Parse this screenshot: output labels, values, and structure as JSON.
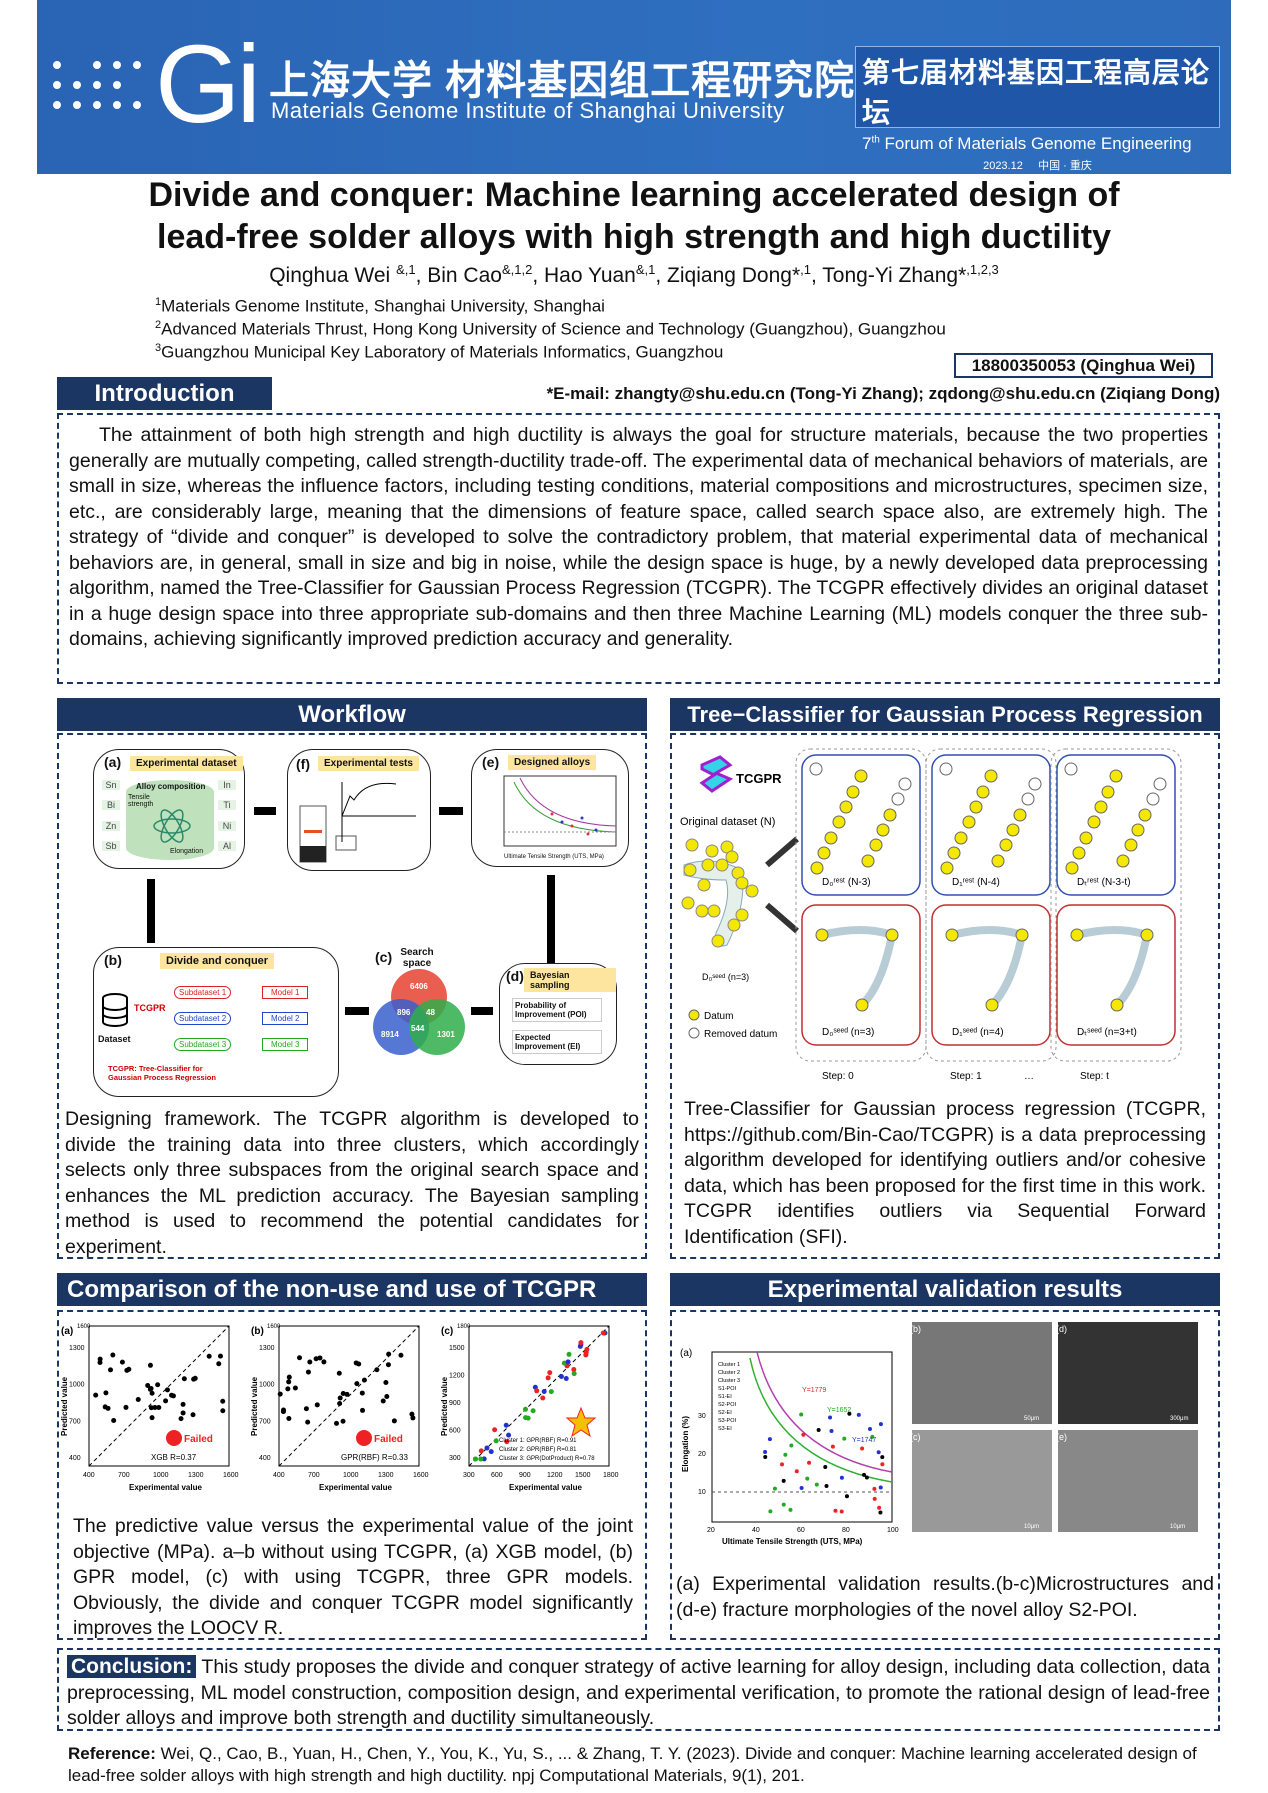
{
  "banner": {
    "logo_text": "Gi",
    "institute_cn": "上海大学 材料基因组工程研究院",
    "institute_en": "Materials Genome Institute of Shanghai University",
    "forum_cn": "第七届材料基因工程高层论坛",
    "forum_en_sup": "th",
    "forum_en_num": "7",
    "forum_en": "Forum of Materials Genome Engineering",
    "forum_date": "2023.12",
    "forum_place": "中国 · 重庆",
    "brand_color": "#2a64b4"
  },
  "title": {
    "line1": "Divide and conquer:   Machine learning accelerated design of",
    "line2": "lead-free solder alloys with high strength and high ductility"
  },
  "authors": [
    {
      "name": "Qinghua Wei ",
      "sup": "&,1"
    },
    {
      "name": ", Bin Cao",
      "sup": "&,1,2"
    },
    {
      "name": ", Hao Yuan",
      "sup": "&,1"
    },
    {
      "name": ", Ziqiang Dong*",
      "sup": ",1"
    },
    {
      "name": ", Tong-Yi Zhang*",
      "sup": ",1,2,3"
    }
  ],
  "affiliations": [
    {
      "sup": "1",
      "text": "Materials Genome Institute, Shanghai University, Shanghai"
    },
    {
      "sup": "2",
      "text": "Advanced Materials Thrust, Hong Kong University of Science and Technology (Guangzhou), Guangzhou"
    },
    {
      "sup": "3",
      "text": "Guangzhou Municipal Key Laboratory of Materials Informatics, Guangzhou"
    }
  ],
  "contact": {
    "phone": "18800350053 (Qinghua Wei)",
    "email": "*E-mail: zhangty@shu.edu.cn (Tong-Yi Zhang); zqdong@shu.edu.cn (Ziqiang Dong)"
  },
  "introduction": {
    "heading": "Introduction",
    "text": "The attainment of both high strength and high ductility is always the goal for structure materials, because the two properties generally are mutually competing, called strength-ductility trade-off. The experimental data of mechanical behaviors of materials, are small in size, whereas the influence factors, including testing conditions, material compositions and microstructures, specimen size, etc., are considerably large, meaning that the dimensions of feature space, called search space also, are extremely high. The strategy of “divide and conquer” is developed to solve the contradictory problem, that material experimental data of mechanical behaviors are, in general, small in size and big in noise, while the design space is huge, by a newly developed data preprocessing algorithm, named the Tree-Classifier for Gaussian Process Regression (TCGPR).  The TCGPR effectively divides an original dataset in a huge design space into three appropriate sub-domains and then three Machine Learning (ML) models conquer the three sub-domains, achieving significantly improved prediction accuracy and generality."
  },
  "workflow": {
    "heading": "Workflow",
    "fig": {
      "a_label": "(a)",
      "a_tag": "Experimental dataset",
      "alloy_comp": "Alloy composition",
      "tensile": "Tensile strength",
      "elongation": "Elongation",
      "elements_left": [
        "Sn",
        "Bi",
        "Zn",
        "Sb"
      ],
      "elements_right": [
        "In",
        "Ti",
        "Ni",
        "Al"
      ],
      "f_label": "(f)",
      "f_tag": "Experimental tests",
      "e_label": "(e)",
      "e_tag": "Designed alloys",
      "e_xlabel": "Ultimate Tensile Strength (UTS, MPa)",
      "e_ylabel": "Elongation (%)",
      "b_label": "(b)",
      "b_tag": "Divide and conquer",
      "dataset": "Dataset",
      "tcgpr": "TCGPR",
      "subdatasets": [
        "Subdataset 1",
        "Subdataset 2",
        "Subdataset 3"
      ],
      "models": [
        "Model 1",
        "Model 2",
        "Model 3"
      ],
      "tcgpr_note": "TCGPR: Tree-Classifier for Gaussian Process Regression",
      "c_label": "(c)",
      "c_title": "Search space",
      "venn": [
        "6406",
        "8914",
        "1301",
        "896",
        "48",
        "544"
      ],
      "d_label": "(d)",
      "d_tag": "Bayesian sampling",
      "poi": "Probability of Improvement (POI)",
      "ei": "Expected Improvement (EI)"
    },
    "caption": "Designing framework. The TCGPR algorithm is developed to divide the training data into three clusters, which accordingly selects only three subspaces from the original search space and enhances the ML prediction accuracy. The Bayesian sampling method is used to recommend the potential candidates for experiment."
  },
  "tcgpr": {
    "heading": "Tree−Classifier for Gaussian Process Regression",
    "fig": {
      "logo": "TCGPR",
      "original": "Original dataset (N)",
      "seed0": "D₀ˢᵉᵉᵈ (n=3)",
      "rest": [
        "D₀ʳᵉˢᵗ (N-3)",
        "D₁ʳᵉˢᵗ (N-4)",
        "Dₜʳᵉˢᵗ (N-3-t)"
      ],
      "seed": [
        "D₀ˢᵉᵉᵈ (n=3)",
        "D₁ˢᵉᵉᵈ (n=4)",
        "Dₜˢᵉᵉᵈ (n=3+t)"
      ],
      "steps": [
        "Step: 0",
        "Step: 1",
        "…",
        "Step: t"
      ],
      "legend_datum": "Datum",
      "legend_removed": "Removed datum",
      "datum_color": "#f5e800"
    },
    "caption": "Tree-Classifier for Gaussian process regression (TCGPR, https://github.com/Bin-Cao/TCGPR) is a data preprocessing algorithm developed for identifying outliers and/or cohesive data, which has been proposed for the first time in this work. TCGPR identifies outliers via Sequential Forward Identification (SFI)."
  },
  "comparison": {
    "heading": "Comparison of the non-use and use of TCGPR",
    "plots": [
      {
        "label": "(a)",
        "ymax": "1600",
        "yticks": [
          "1300",
          "1000",
          "700",
          "400"
        ],
        "xticks": [
          "400",
          "700",
          "1000",
          "1300",
          "1600"
        ],
        "legend": "XGB  R=0.37",
        "failed": "Failed"
      },
      {
        "label": "(b)",
        "ymax": "1600",
        "yticks": [
          "1300",
          "1000",
          "700",
          "400"
        ],
        "xticks": [
          "400",
          "700",
          "1000",
          "1300",
          "1600"
        ],
        "legend": "GPR(RBF)  R=0.33",
        "failed": "Failed"
      },
      {
        "label": "(c)",
        "ymax": "1800",
        "yticks": [
          "1500",
          "1200",
          "900",
          "600",
          "300"
        ],
        "xticks": [
          "300",
          "600",
          "900",
          "1200",
          "1500",
          "1800"
        ],
        "legends": [
          "Cluster 1: GPR(RBF) R=0.91",
          "Cluster 2: GPR(RBF) R=0.81",
          "Cluster 3: GPR(DotProduct) R=0.78"
        ]
      }
    ],
    "xlabel": "Experimental value",
    "ylabel": "Predicted value",
    "caption": "The predictive value versus the experimental value of the joint objective (MPa). a–b without using TCGPR, (a) XGB model, (b) GPR model, (c) with using TCGPR, three GPR models. Obviously, the divide and conquer TCGPR model significantly improves the LOOCV R."
  },
  "validation": {
    "heading": "Experimental validation results",
    "fig": {
      "a_label": "(a)",
      "xlabel": "Ultimate Tensile Strength (UTS, MPa)",
      "ylabel": "Elongation (%)",
      "xticks": [
        "20",
        "40",
        "60",
        "80",
        "100"
      ],
      "yticks": [
        "10",
        "20",
        "30"
      ],
      "annotations": [
        "Y=1779",
        "Y=1652",
        "Y=1747"
      ],
      "legend": [
        "Cluster 1",
        "Cluster 2",
        "Cluster 3",
        "S1-POI",
        "S1-EI",
        "S2-POI",
        "S2-EI",
        "S3-POI",
        "S3-EI"
      ],
      "b_label": "(b)",
      "c_label": "(c)",
      "d_label": "(d)",
      "e_label": "(e)",
      "scale_b": "50μm",
      "scale_c": "10μm",
      "scale_d": "300μm",
      "scale_e": "10μm"
    },
    "caption": "(a) Experimental validation results.(b-c)Microstructures and (d-e) fracture morphologies of the novel alloy S2-POI."
  },
  "conclusion": {
    "label": "Conclusion:",
    "text": " This study proposes the divide and conquer strategy of active learning for alloy design, including data collection, data preprocessing, ML model construction, composition design, and experimental verification, to promote the rational design of lead-free solder alloys and improve both strength and ductility simultaneously."
  },
  "reference": {
    "label": "Reference:",
    "text": " Wei, Q., Cao, B., Yuan, H., Chen, Y., You, K., Yu, S., ... & Zhang, T. Y. (2023). Divide and conquer: Machine learning accelerated design of lead-free solder alloys with high strength and high ductility. npj Computational Materials, 9(1), 201."
  },
  "colors": {
    "section_header": "#1c3664",
    "accent_tag": "#fde5a0"
  }
}
